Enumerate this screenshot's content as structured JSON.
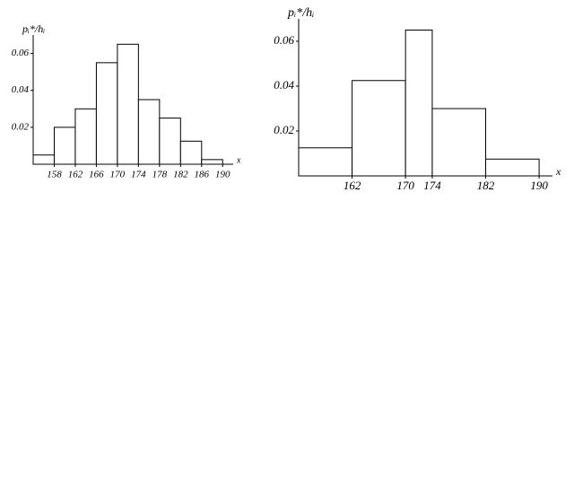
{
  "chart_data": [
    {
      "type": "histogram",
      "y_label": "pᵢ*/hᵢ",
      "x_label": "x",
      "bins": [
        154,
        158,
        162,
        166,
        170,
        174,
        178,
        182,
        186,
        190
      ],
      "values": [
        0.005,
        0.02,
        0.03,
        0.055,
        0.065,
        0.035,
        0.025,
        0.0125,
        0.0025
      ],
      "xlim": [
        154,
        192
      ],
      "ylim": [
        0,
        0.07
      ],
      "xticks": [
        158,
        162,
        166,
        170,
        174,
        178,
        182,
        186,
        190
      ],
      "yticks": [
        0.02,
        0.04,
        0.06
      ],
      "color": "#ffffff"
    },
    {
      "type": "histogram",
      "y_label": "pᵢ*/hᵢ",
      "x_label": "x",
      "bins": [
        154,
        162,
        170,
        174,
        182,
        190
      ],
      "values": [
        0.0125,
        0.0425,
        0.065,
        0.03,
        0.0075
      ],
      "xlim": [
        154,
        192
      ],
      "ylim": [
        0,
        0.07
      ],
      "xticks": [
        162,
        170,
        174,
        182,
        190
      ],
      "yticks": [
        0.02,
        0.04,
        0.06
      ],
      "color": "#ffffff"
    }
  ]
}
